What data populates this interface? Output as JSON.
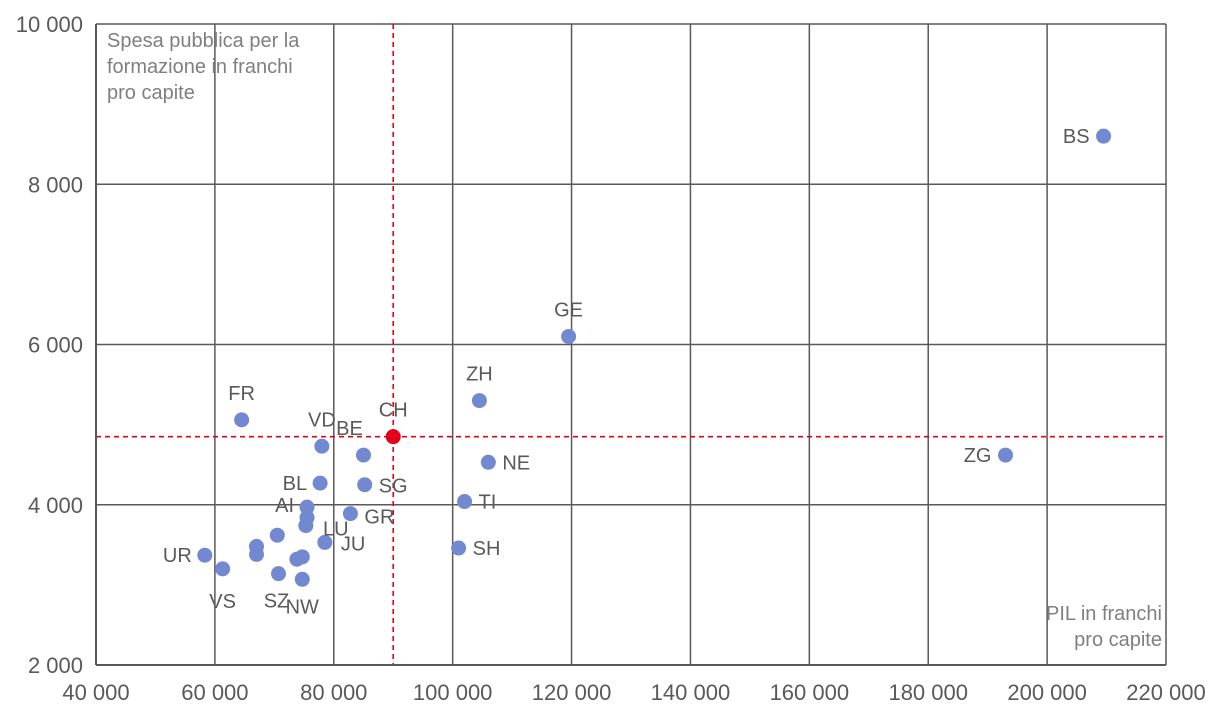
{
  "chart_data": {
    "type": "scatter",
    "xlabel": "PIL in franchi pro capite",
    "xlabel_lines": [
      "PIL in franchi",
      "pro capite"
    ],
    "ylabel": "Spesa pubblica per la formazione in franchi pro capite",
    "ylabel_lines": [
      "Spesa pubblica per la",
      "formazione in franchi",
      "pro capite"
    ],
    "xlim": [
      40000,
      220000
    ],
    "ylim": [
      2000,
      10000
    ],
    "x_ticks": [
      40000,
      60000,
      80000,
      100000,
      120000,
      140000,
      160000,
      180000,
      200000,
      220000
    ],
    "x_tick_labels": [
      "40 000",
      "60 000",
      "80 000",
      "100 000",
      "120 000",
      "140 000",
      "160 000",
      "180 000",
      "200 000",
      "220 000"
    ],
    "y_ticks": [
      2000,
      4000,
      6000,
      8000,
      10000
    ],
    "y_tick_labels": [
      "2 000",
      "4 000",
      "6 000",
      "8 000",
      "10 000"
    ],
    "grid": true,
    "colors": {
      "point": "#7289d2",
      "reference": "#e3001b",
      "grid": "#595959"
    },
    "reference": {
      "label": "CH",
      "x": 90000,
      "y": 4850
    },
    "points": [
      {
        "label": "BS",
        "x": 209500,
        "y": 8600
      },
      {
        "label": "GE",
        "x": 119500,
        "y": 6100
      },
      {
        "label": "ZG",
        "x": 193000,
        "y": 4620
      },
      {
        "label": "ZH",
        "x": 104500,
        "y": 5300
      },
      {
        "label": "NE",
        "x": 106000,
        "y": 4530
      },
      {
        "label": "TI",
        "x": 102000,
        "y": 4040
      },
      {
        "label": "SH",
        "x": 101000,
        "y": 3460
      },
      {
        "label": "FR",
        "x": 64500,
        "y": 5060
      },
      {
        "label": "VD",
        "x": 78000,
        "y": 4730
      },
      {
        "label": "BE",
        "x": 85000,
        "y": 4620
      },
      {
        "label": "SG",
        "x": 85200,
        "y": 4250
      },
      {
        "label": "BL",
        "x": 77700,
        "y": 4270
      },
      {
        "label": "GR",
        "x": 82800,
        "y": 3890
      },
      {
        "label": "LU",
        "x": 75500,
        "y": 3840
      },
      {
        "label": "AI",
        "x": 75500,
        "y": 3970
      },
      {
        "label": "",
        "x": 75300,
        "y": 3740
      },
      {
        "label": "JU",
        "x": 78500,
        "y": 3530
      },
      {
        "label": "",
        "x": 70500,
        "y": 3620
      },
      {
        "label": "",
        "x": 67000,
        "y": 3480
      },
      {
        "label": "",
        "x": 67000,
        "y": 3380
      },
      {
        "label": "",
        "x": 74700,
        "y": 3350
      },
      {
        "label": "",
        "x": 73800,
        "y": 3320
      },
      {
        "label": "UR",
        "x": 58300,
        "y": 3370
      },
      {
        "label": "VS",
        "x": 61300,
        "y": 3200
      },
      {
        "label": "SZ",
        "x": 70700,
        "y": 3140
      },
      {
        "label": "NW",
        "x": 74700,
        "y": 3070
      }
    ]
  }
}
